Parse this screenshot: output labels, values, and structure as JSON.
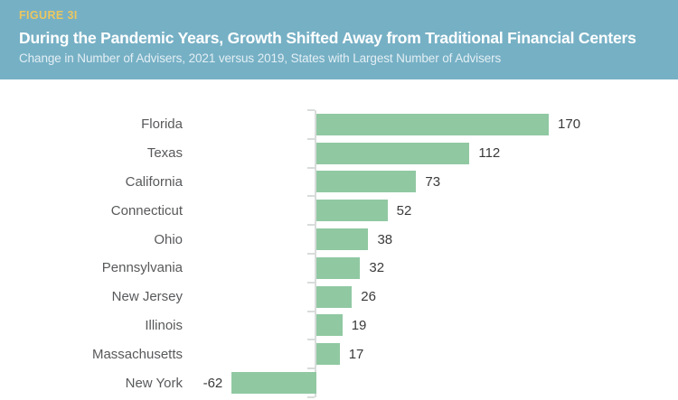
{
  "header": {
    "figure_label": "FIGURE 3I",
    "title": "During the Pandemic Years, Growth Shifted Away from Traditional Financial Centers",
    "subtitle": "Change in Number of Advisers, 2021 versus 2019, States with Largest Number of Advisers"
  },
  "colors": {
    "header_bg": "#76b0c5",
    "figure_label": "#ecc75f",
    "title_text": "#ffffff",
    "subtitle_text": "#e3eff4",
    "bar_fill": "#90c8a2",
    "category_label": "#58595b",
    "value_label": "#3a3a3a",
    "axis_line": "#d8dcda",
    "page_bg": "#ffffff"
  },
  "chart_data": {
    "type": "bar",
    "orientation": "horizontal",
    "title": "During the Pandemic Years, Growth Shifted Away from Traditional Financial Centers",
    "subtitle": "Change in Number of Advisers, 2021 versus 2019, States with Largest Number of Advisers",
    "categories": [
      "Florida",
      "Texas",
      "California",
      "Connecticut",
      "Ohio",
      "Pennsylvania",
      "New Jersey",
      "Illinois",
      "Massachusetts",
      "New York"
    ],
    "values": [
      170,
      112,
      73,
      52,
      38,
      32,
      26,
      19,
      17,
      -62
    ],
    "value_labels": [
      "170",
      "112",
      "73",
      "52",
      "38",
      "32",
      "26",
      "19",
      "17",
      "-62"
    ],
    "xlabel": "",
    "ylabel": "",
    "xlim": [
      -62,
      170
    ],
    "grid": false,
    "legend": null,
    "value_labels_shown": true,
    "baseline": 0
  }
}
